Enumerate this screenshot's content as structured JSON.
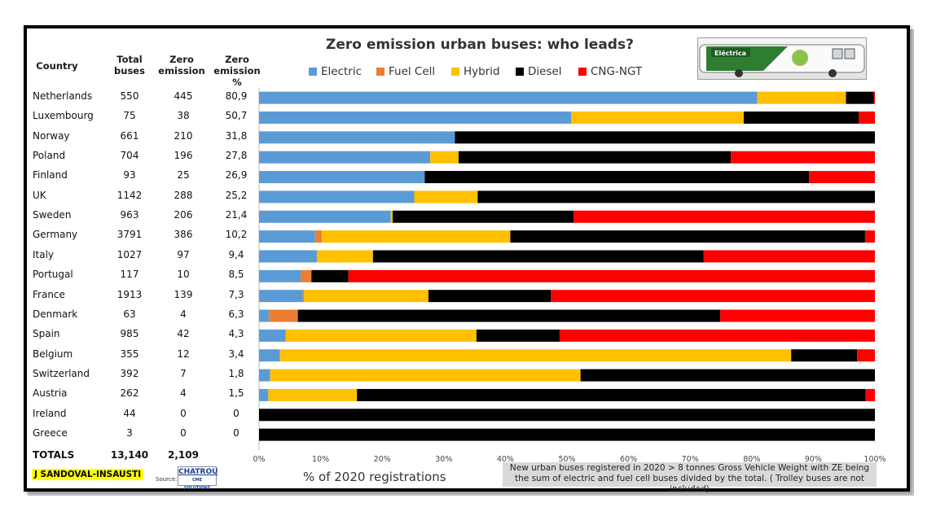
{
  "headers": {
    "country": "Country",
    "total": [
      "Total",
      "buses"
    ],
    "zero": [
      "Zero",
      "emission"
    ],
    "zero_pct": [
      "Zero",
      "emission %"
    ]
  },
  "title": "Zero emission urban buses: who leads?",
  "legend": [
    {
      "label": "Electric",
      "color": "#5b9bd5"
    },
    {
      "label": "Fuel Cell",
      "color": "#ed7d31"
    },
    {
      "label": "Hybrid",
      "color": "#ffc000"
    },
    {
      "label": "Diesel",
      "color": "#000000"
    },
    {
      "label": "CNG-NGT",
      "color": "#ff0000"
    }
  ],
  "rows": [
    {
      "country": "Netherlands",
      "total": "550",
      "zero": "445",
      "pct": "80,9"
    },
    {
      "country": "Luxembourg",
      "total": "75",
      "zero": "38",
      "pct": "50,7"
    },
    {
      "country": "Norway",
      "total": "661",
      "zero": "210",
      "pct": "31,8"
    },
    {
      "country": "Poland",
      "total": "704",
      "zero": "196",
      "pct": "27,8"
    },
    {
      "country": "Finland",
      "total": "93",
      "zero": "25",
      "pct": "26,9"
    },
    {
      "country": "UK",
      "total": "1142",
      "zero": "288",
      "pct": "25,2"
    },
    {
      "country": "Sweden",
      "total": "963",
      "zero": "206",
      "pct": "21,4"
    },
    {
      "country": "Germany",
      "total": "3791",
      "zero": "386",
      "pct": "10,2"
    },
    {
      "country": "Italy",
      "total": "1027",
      "zero": "97",
      "pct": "9,4"
    },
    {
      "country": "Portugal",
      "total": "117",
      "zero": "10",
      "pct": "8,5"
    },
    {
      "country": "France",
      "total": "1913",
      "zero": "139",
      "pct": "7,3"
    },
    {
      "country": "Denmark",
      "total": "63",
      "zero": "4",
      "pct": "6,3"
    },
    {
      "country": "Spain",
      "total": "985",
      "zero": "42",
      "pct": "4,3"
    },
    {
      "country": "Belgium",
      "total": "355",
      "zero": "12",
      "pct": "3,4"
    },
    {
      "country": "Switzerland",
      "total": "392",
      "zero": "7",
      "pct": "1,8"
    },
    {
      "country": "Austria",
      "total": "262",
      "zero": "4",
      "pct": "1,5"
    },
    {
      "country": "Ireland",
      "total": "44",
      "zero": "0",
      "pct": "0"
    },
    {
      "country": "Greece",
      "total": "3",
      "zero": "0",
      "pct": "0"
    }
  ],
  "totals": {
    "label": "TOTALS",
    "total": "13,140",
    "zero": "2,109"
  },
  "xlabel": "% of 2020 registrations",
  "note": "New urban buses registered in 2020 > 8 tonnes Gross Vehicle Weight with ZE being the sum of electric and fuel cell buses divided by the total. ( Trolley buses are not included)",
  "author": "J SANDOVAL-INSAUSTI",
  "source_label": "Source:",
  "source_logo": [
    "CHATROU",
    "CME SOLUTIONS"
  ],
  "bus_logo_text": "Eléctrica",
  "chart_data": {
    "type": "bar",
    "orientation": "horizontal",
    "stacked": true,
    "title": "Zero emission urban buses: who leads?",
    "xlabel": "% of 2020 registrations",
    "xlim": [
      0,
      100
    ],
    "xticks": [
      "0%",
      "10%",
      "20%",
      "30%",
      "40%",
      "50%",
      "60%",
      "70%",
      "80%",
      "90%",
      "100%"
    ],
    "categories": [
      "Netherlands",
      "Luxembourg",
      "Norway",
      "Poland",
      "Finland",
      "UK",
      "Sweden",
      "Germany",
      "Italy",
      "Portugal",
      "France",
      "Denmark",
      "Spain",
      "Belgium",
      "Switzerland",
      "Austria",
      "Ireland",
      "Greece"
    ],
    "series": [
      {
        "name": "Electric",
        "color": "#5b9bd5",
        "values": [
          80.9,
          50.7,
          31.8,
          27.8,
          26.9,
          25.2,
          21.4,
          9.1,
          9.4,
          6.8,
          7.1,
          1.6,
          4.3,
          3.4,
          1.8,
          1.5,
          0,
          0
        ]
      },
      {
        "name": "Fuel Cell",
        "color": "#ed7d31",
        "values": [
          0,
          0,
          0,
          0,
          0,
          0,
          0,
          1.1,
          0,
          1.7,
          0.2,
          4.7,
          0,
          0,
          0,
          0,
          0,
          0
        ]
      },
      {
        "name": "Hybrid",
        "color": "#ffc000",
        "values": [
          14.4,
          28.0,
          0,
          4.6,
          0,
          10.3,
          0.3,
          30.6,
          9.1,
          0,
          20.2,
          0,
          31.0,
          83.0,
          50.4,
          14.4,
          0,
          0
        ]
      },
      {
        "name": "Diesel",
        "color": "#000000",
        "values": [
          4.5,
          18.7,
          68.2,
          44.2,
          62.4,
          64.5,
          29.4,
          57.6,
          53.7,
          6.0,
          19.9,
          68.6,
          13.5,
          10.7,
          47.8,
          82.6,
          100,
          100
        ]
      },
      {
        "name": "CNG-NGT",
        "color": "#ff0000",
        "values": [
          0.2,
          2.6,
          0,
          23.4,
          10.7,
          0,
          48.9,
          1.6,
          27.8,
          85.5,
          52.6,
          25.1,
          51.2,
          2.9,
          0,
          1.5,
          0,
          0
        ]
      }
    ]
  }
}
